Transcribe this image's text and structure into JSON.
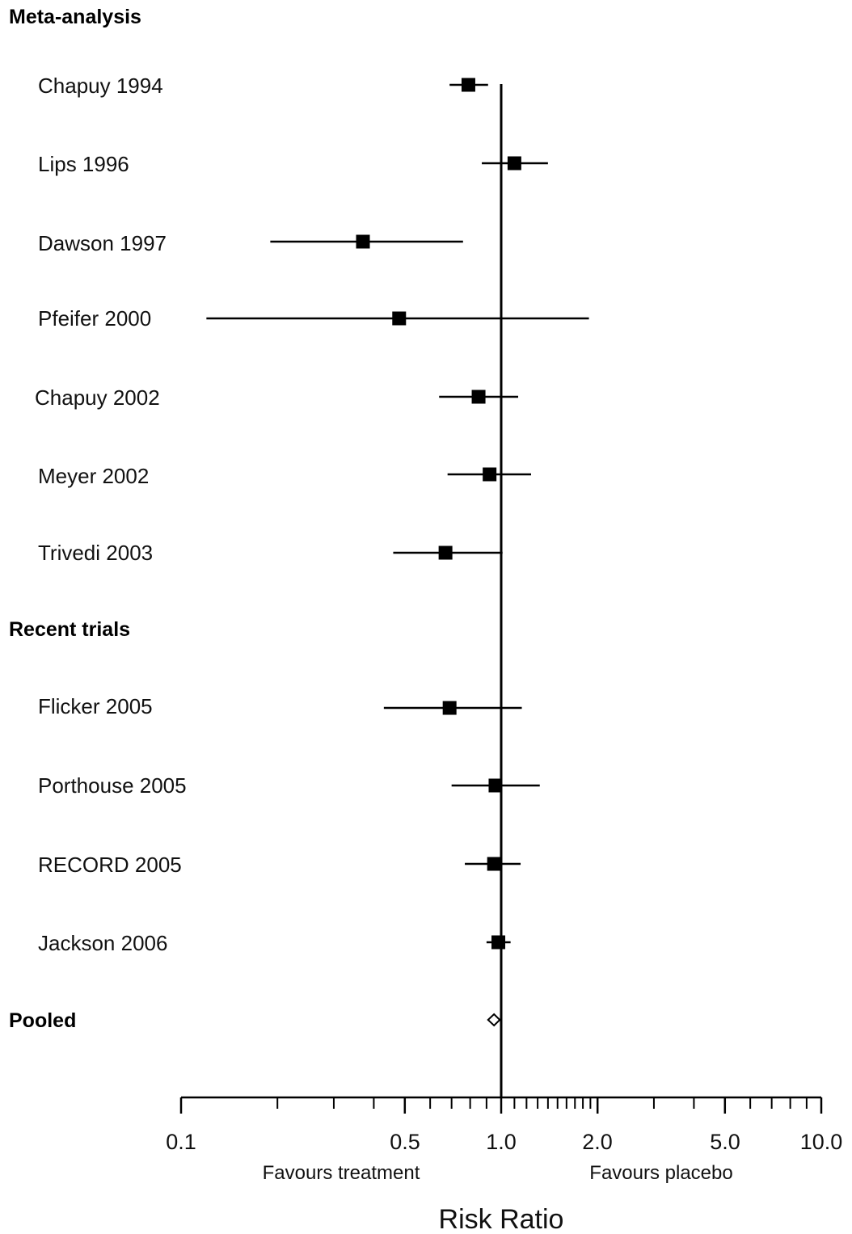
{
  "chart_data": {
    "type": "forest",
    "x_scale": "log",
    "xlim": [
      0.1,
      10.0
    ],
    "reference_line": 1.0,
    "xlabel": "Risk Ratio",
    "x_ticks_labeled": [
      "0.1",
      "0.5",
      "1.0",
      "2.0",
      "5.0",
      "10.0"
    ],
    "left_annotation": "Favours treatment",
    "right_annotation": "Favours placebo",
    "groups": [
      {
        "label": "Meta-analysis",
        "studies": [
          {
            "name": "Chapuy 1994",
            "rr": 0.79,
            "lower": 0.69,
            "upper": 0.91
          },
          {
            "name": "Lips 1996",
            "rr": 1.1,
            "lower": 0.87,
            "upper": 1.4
          },
          {
            "name": "Dawson 1997",
            "rr": 0.37,
            "lower": 0.19,
            "upper": 0.76
          },
          {
            "name": "Pfeifer 2000",
            "rr": 0.48,
            "lower": 0.12,
            "upper": 1.88
          },
          {
            "name": "Chapuy 2002",
            "rr": 0.85,
            "lower": 0.64,
            "upper": 1.13
          },
          {
            "name": "Meyer 2002",
            "rr": 0.92,
            "lower": 0.68,
            "upper": 1.24
          },
          {
            "name": "Trivedi 2003",
            "rr": 0.67,
            "lower": 0.46,
            "upper": 1.01
          }
        ]
      },
      {
        "label": "Recent trials",
        "studies": [
          {
            "name": "Flicker 2005",
            "rr": 0.69,
            "lower": 0.43,
            "upper": 1.16
          },
          {
            "name": "Porthouse 2005",
            "rr": 0.96,
            "lower": 0.7,
            "upper": 1.32
          },
          {
            "name": "RECORD 2005",
            "rr": 0.95,
            "lower": 0.77,
            "upper": 1.15
          },
          {
            "name": "Jackson 2006",
            "rr": 0.98,
            "lower": 0.9,
            "upper": 1.07
          }
        ]
      }
    ],
    "pooled": {
      "label": "Pooled",
      "rr": 0.95,
      "lower": 0.91,
      "upper": 0.99
    }
  }
}
